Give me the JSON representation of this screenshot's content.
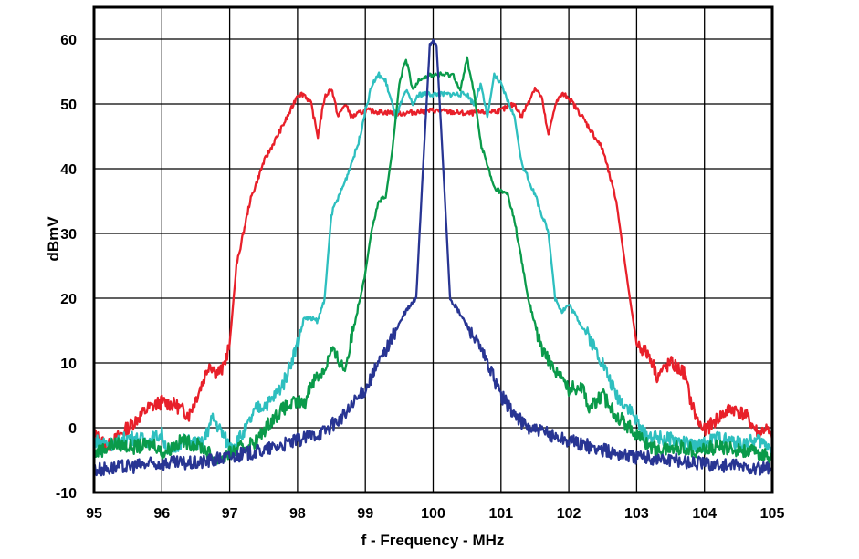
{
  "chart_data": {
    "type": "line",
    "title": "",
    "xlabel": "f - Frequency - MHz",
    "ylabel": "dBmV",
    "xlim": [
      95,
      105
    ],
    "ylim": [
      -10,
      60
    ],
    "xticks": [
      95,
      96,
      97,
      98,
      99,
      100,
      101,
      102,
      103,
      104,
      105
    ],
    "yticks": [
      -10,
      0,
      10,
      20,
      30,
      40,
      50,
      60
    ],
    "grid": true,
    "legend": "none",
    "series": [
      {
        "color": "#e8202a",
        "points": [
          [
            95,
            -1
          ],
          [
            95.2,
            -3
          ],
          [
            95.4,
            -1
          ],
          [
            95.6,
            1
          ],
          [
            95.8,
            3
          ],
          [
            96,
            4
          ],
          [
            96.2,
            3.5
          ],
          [
            96.4,
            2
          ],
          [
            96.6,
            7
          ],
          [
            96.7,
            10
          ],
          [
            96.8,
            8.5
          ],
          [
            96.9,
            9
          ],
          [
            97,
            13
          ],
          [
            97.1,
            25
          ],
          [
            97.3,
            35
          ],
          [
            97.5,
            41
          ],
          [
            97.7,
            45
          ],
          [
            97.9,
            49
          ],
          [
            98,
            51.5
          ],
          [
            98.1,
            51.5
          ],
          [
            98.2,
            50
          ],
          [
            98.3,
            45
          ],
          [
            98.4,
            51
          ],
          [
            98.5,
            52.5
          ],
          [
            98.6,
            48
          ],
          [
            98.7,
            50
          ],
          [
            98.8,
            48
          ],
          [
            99,
            49
          ],
          [
            99.5,
            48.5
          ],
          [
            100,
            49
          ],
          [
            100.5,
            48.5
          ],
          [
            101,
            49
          ],
          [
            101.2,
            50
          ],
          [
            101.3,
            48
          ],
          [
            101.5,
            52.5
          ],
          [
            101.6,
            51
          ],
          [
            101.7,
            45
          ],
          [
            101.8,
            50
          ],
          [
            101.9,
            51.5
          ],
          [
            102,
            51
          ],
          [
            102.2,
            48
          ],
          [
            102.5,
            43
          ],
          [
            102.7,
            35
          ],
          [
            102.9,
            20
          ],
          [
            103,
            13
          ],
          [
            103.2,
            11
          ],
          [
            103.3,
            8
          ],
          [
            103.5,
            10
          ],
          [
            103.7,
            8.5
          ],
          [
            103.8,
            4
          ],
          [
            103.9,
            1
          ],
          [
            104,
            -0.5
          ],
          [
            104.2,
            1.5
          ],
          [
            104.4,
            3
          ],
          [
            104.6,
            2
          ],
          [
            104.8,
            -1
          ],
          [
            104.9,
            0
          ],
          [
            105,
            -2
          ]
        ]
      },
      {
        "color": "#2ebfbf",
        "points": [
          [
            95,
            -2
          ],
          [
            95.3,
            -2.5
          ],
          [
            95.5,
            -1.5
          ],
          [
            95.8,
            -2
          ],
          [
            96,
            -1
          ],
          [
            96.1,
            -4
          ],
          [
            96.3,
            -2
          ],
          [
            96.6,
            -2.5
          ],
          [
            96.75,
            1.5
          ],
          [
            96.9,
            -1
          ],
          [
            97,
            -3
          ],
          [
            97.2,
            -1
          ],
          [
            97.4,
            3
          ],
          [
            97.6,
            4
          ],
          [
            97.8,
            7
          ],
          [
            98,
            13
          ],
          [
            98.1,
            17
          ],
          [
            98.3,
            16.5
          ],
          [
            98.4,
            20
          ],
          [
            98.5,
            33
          ],
          [
            98.7,
            38
          ],
          [
            98.9,
            44
          ],
          [
            99,
            49
          ],
          [
            99.1,
            53
          ],
          [
            99.2,
            54.5
          ],
          [
            99.3,
            53.5
          ],
          [
            99.45,
            48
          ],
          [
            99.6,
            52
          ],
          [
            99.7,
            50
          ],
          [
            99.8,
            51.5
          ],
          [
            100.5,
            51.5
          ],
          [
            100.6,
            50
          ],
          [
            100.7,
            53
          ],
          [
            100.8,
            48
          ],
          [
            100.9,
            54.5
          ],
          [
            101,
            53
          ],
          [
            101.2,
            48
          ],
          [
            101.3,
            41
          ],
          [
            101.5,
            36
          ],
          [
            101.7,
            30
          ],
          [
            101.8,
            20
          ],
          [
            101.9,
            18
          ],
          [
            102,
            19
          ],
          [
            102.3,
            14
          ],
          [
            102.5,
            10
          ],
          [
            102.7,
            5
          ],
          [
            102.9,
            3
          ],
          [
            103,
            1
          ],
          [
            103.1,
            -1
          ],
          [
            103.3,
            -1.5
          ],
          [
            103.6,
            -2
          ],
          [
            103.9,
            -3
          ],
          [
            104.2,
            -1.5
          ],
          [
            104.5,
            -2.5
          ],
          [
            104.8,
            -2
          ],
          [
            105,
            -3
          ]
        ]
      },
      {
        "color": "#0a9a4a",
        "points": [
          [
            95,
            -4
          ],
          [
            95.3,
            -2.5
          ],
          [
            95.6,
            -3
          ],
          [
            95.9,
            -2.5
          ],
          [
            96,
            -4
          ],
          [
            96.3,
            -2
          ],
          [
            96.6,
            -3
          ],
          [
            96.8,
            -5
          ],
          [
            97,
            -4
          ],
          [
            97.2,
            -3
          ],
          [
            97.4,
            -2
          ],
          [
            97.6,
            1
          ],
          [
            97.8,
            3
          ],
          [
            98,
            4
          ],
          [
            98.1,
            3.5
          ],
          [
            98.2,
            7
          ],
          [
            98.4,
            9
          ],
          [
            98.5,
            12
          ],
          [
            98.7,
            9
          ],
          [
            98.8,
            14
          ],
          [
            99,
            24
          ],
          [
            99.1,
            31
          ],
          [
            99.2,
            35
          ],
          [
            99.3,
            35.5
          ],
          [
            99.4,
            43
          ],
          [
            99.5,
            53
          ],
          [
            99.6,
            57
          ],
          [
            99.7,
            52
          ],
          [
            99.8,
            54
          ],
          [
            100,
            54.5
          ],
          [
            100.3,
            54.5
          ],
          [
            100.4,
            52
          ],
          [
            100.5,
            57
          ],
          [
            100.6,
            52
          ],
          [
            100.7,
            44
          ],
          [
            100.9,
            37
          ],
          [
            101,
            36.5
          ],
          [
            101.1,
            36
          ],
          [
            101.2,
            32
          ],
          [
            101.4,
            20
          ],
          [
            101.6,
            12
          ],
          [
            101.8,
            9
          ],
          [
            102,
            6
          ],
          [
            102.2,
            6.5
          ],
          [
            102.3,
            3
          ],
          [
            102.5,
            5
          ],
          [
            102.7,
            2
          ],
          [
            102.9,
            0
          ],
          [
            103.1,
            -2
          ],
          [
            103.3,
            -3.5
          ],
          [
            103.6,
            -3
          ],
          [
            103.9,
            -3.5
          ],
          [
            104.2,
            -3
          ],
          [
            104.6,
            -3.5
          ],
          [
            104.8,
            -4
          ],
          [
            105,
            -4.5
          ]
        ]
      },
      {
        "color": "#283593",
        "points": [
          [
            95,
            -6.5
          ],
          [
            95.5,
            -6
          ],
          [
            96,
            -5.5
          ],
          [
            96.5,
            -5.5
          ],
          [
            97,
            -4.5
          ],
          [
            97.5,
            -3.5
          ],
          [
            98,
            -2
          ],
          [
            98.4,
            -0.5
          ],
          [
            98.7,
            2
          ],
          [
            99,
            6
          ],
          [
            99.2,
            10
          ],
          [
            99.4,
            14
          ],
          [
            99.6,
            18
          ],
          [
            99.75,
            20
          ],
          [
            99.85,
            40
          ],
          [
            99.95,
            59
          ],
          [
            100,
            60
          ],
          [
            100.05,
            59
          ],
          [
            100.15,
            40
          ],
          [
            100.25,
            20
          ],
          [
            100.4,
            17.5
          ],
          [
            100.6,
            14
          ],
          [
            100.8,
            10
          ],
          [
            101,
            5
          ],
          [
            101.2,
            2
          ],
          [
            101.4,
            0
          ],
          [
            101.7,
            -1
          ],
          [
            102,
            -2
          ],
          [
            102.5,
            -3.5
          ],
          [
            103,
            -4.5
          ],
          [
            103.5,
            -5
          ],
          [
            104,
            -5.5
          ],
          [
            104.5,
            -6
          ],
          [
            105,
            -6.5
          ]
        ]
      }
    ]
  }
}
